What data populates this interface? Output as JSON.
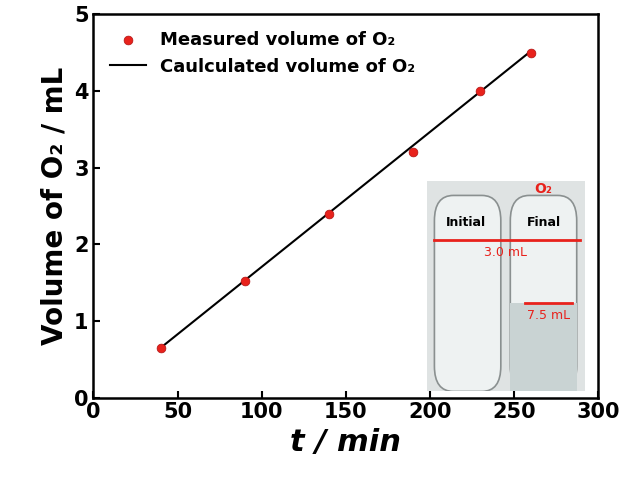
{
  "chart_data": {
    "type": "scatter",
    "x_label": "t / min",
    "y_label": "Volume of O₂ / mL",
    "xlim": [
      0,
      300
    ],
    "xticks": [
      0,
      50,
      100,
      150,
      200,
      250,
      300
    ],
    "ylim": [
      0,
      5
    ],
    "yticks": [
      0,
      1,
      2,
      3,
      4,
      5
    ],
    "legend": "upper left",
    "series": [
      {
        "name": "Measured volume of O₂",
        "type": "scatter",
        "color": "#e8221c",
        "marker": "o",
        "x": [
          40,
          90,
          140,
          190,
          230,
          260
        ],
        "values": [
          0.65,
          1.52,
          2.4,
          3.2,
          4.0,
          4.5
        ]
      },
      {
        "name": "Caulculated volume of O₂",
        "type": "line",
        "color": "#000000",
        "line_style": "solid",
        "x": [
          40,
          260
        ],
        "values": [
          0.65,
          4.52
        ]
      }
    ],
    "annotations": [
      "Initial",
      "Final",
      "O₂",
      "3.0 mL",
      "7.5 mL"
    ]
  }
}
